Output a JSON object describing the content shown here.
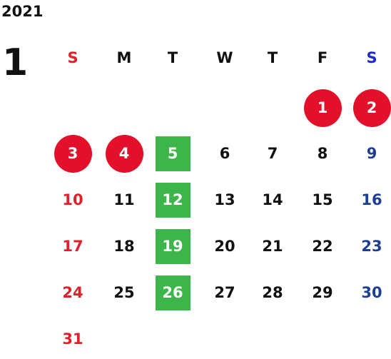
{
  "year": "2021",
  "month": "1",
  "weekdays": [
    "S",
    "M",
    "T",
    "W",
    "T",
    "F",
    "S"
  ],
  "weeks": [
    [
      "",
      "",
      "",
      "",
      "",
      "1",
      "2"
    ],
    [
      "3",
      "4",
      "5",
      "6",
      "7",
      "8",
      "9"
    ],
    [
      "10",
      "11",
      "12",
      "13",
      "14",
      "15",
      "16"
    ],
    [
      "17",
      "18",
      "19",
      "20",
      "21",
      "22",
      "23"
    ],
    [
      "24",
      "25",
      "26",
      "27",
      "28",
      "29",
      "30"
    ],
    [
      "31",
      "",
      "",
      "",
      "",
      "",
      ""
    ]
  ],
  "holidays": [
    "1",
    "2",
    "3",
    "4"
  ],
  "highlighted": [
    "5",
    "12",
    "19",
    "26"
  ],
  "colors": {
    "sunday": "#e0202a",
    "saturday_header": "#1a2cd0",
    "saturday": "#1d3f93",
    "holiday": "#e2102a",
    "highlight": "#3db54a",
    "text": "#111111"
  }
}
